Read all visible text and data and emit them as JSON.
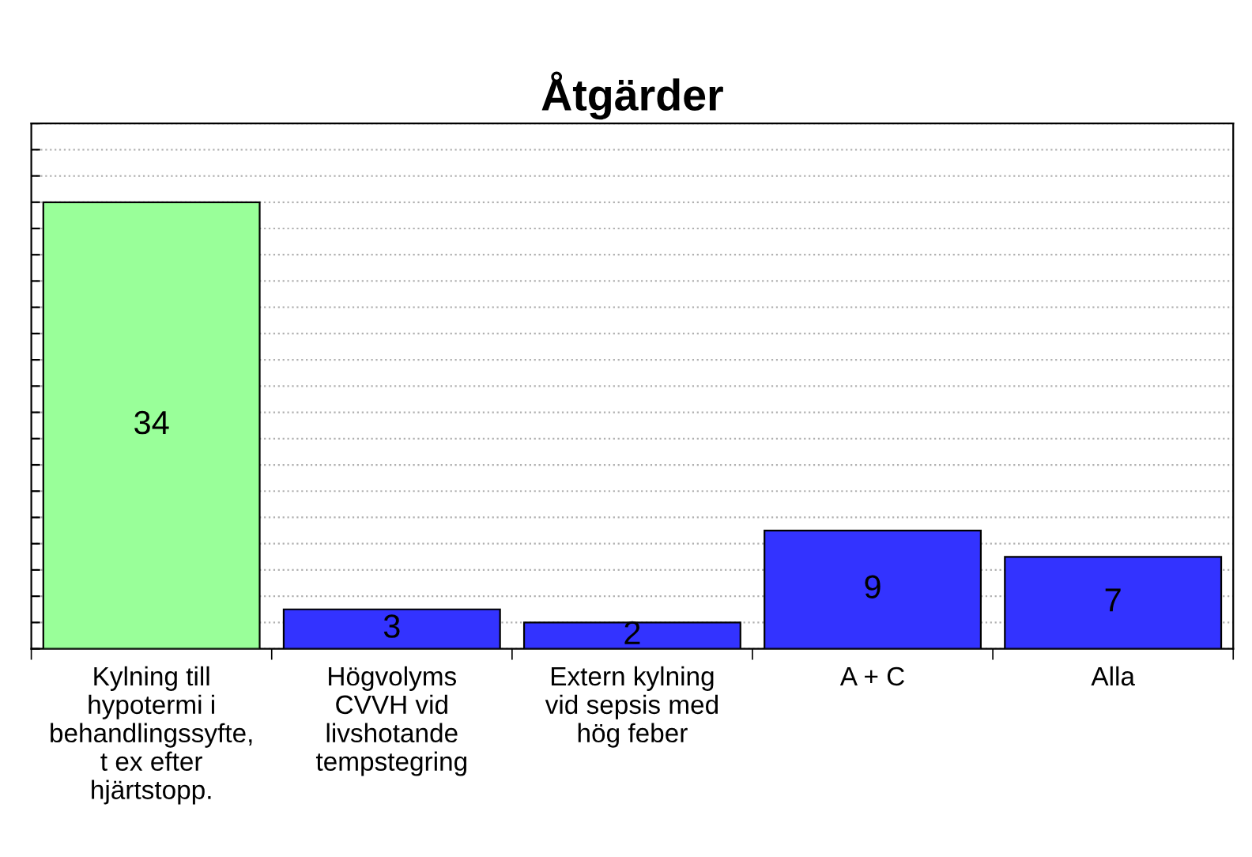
{
  "chart_data": {
    "type": "bar",
    "title": "Åtgärder",
    "categories": [
      "Kylning till\nhypotermi i\nbehandlingssyfte,\nt ex efter\nhjärtstopp.",
      "Högvolyms\nCVVH vid\nlivshotande\ntempstegring",
      "Extern kylning\nvid sepsis med\nhög feber",
      "A + C",
      "Alla"
    ],
    "values": [
      34,
      3,
      2,
      9,
      7
    ],
    "colors": [
      "#99ff99",
      "#3333ff",
      "#3333ff",
      "#3333ff",
      "#3333ff"
    ],
    "ylim": [
      0,
      40
    ],
    "yticks": [
      {
        "value": 0,
        "label": null
      },
      {
        "value": 2,
        "label": null
      },
      {
        "value": 4,
        "label": null
      },
      {
        "value": 6,
        "label": null
      },
      {
        "value": 8,
        "label": null
      },
      {
        "value": 10,
        "label": null
      },
      {
        "value": 12,
        "label": null
      },
      {
        "value": 14,
        "label": null
      },
      {
        "value": 16,
        "label": null
      },
      {
        "value": 18,
        "label": null
      },
      {
        "value": 20,
        "label": null
      },
      {
        "value": 22,
        "label": null
      },
      {
        "value": 24,
        "label": null
      },
      {
        "value": 26,
        "label": null
      },
      {
        "value": 28,
        "label": null
      },
      {
        "value": 30,
        "label": null
      },
      {
        "value": 32,
        "label": null
      },
      {
        "value": 34,
        "label": null
      },
      {
        "value": 36,
        "label": null
      },
      {
        "value": 38,
        "label": null
      },
      {
        "value": 40,
        "label": null
      }
    ],
    "grid": "y",
    "data_labels": true,
    "tick_labels": "x"
  }
}
